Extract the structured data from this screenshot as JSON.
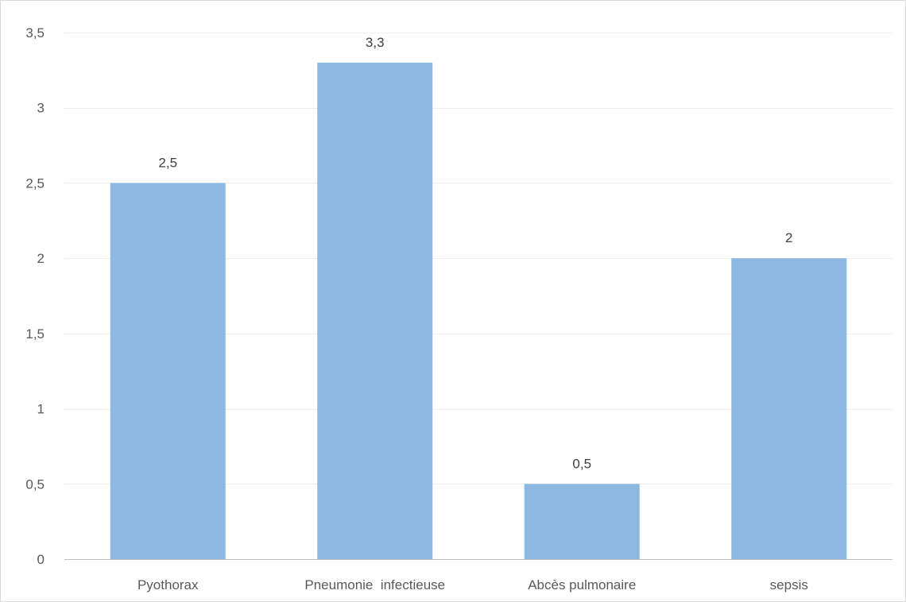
{
  "chart_data": {
    "type": "bar",
    "categories": [
      "Pyothorax",
      "Pneumonie  infectieuse",
      "Abcès pulmonaire",
      "sepsis"
    ],
    "values": [
      2.5,
      3.3,
      0.5,
      2
    ],
    "data_labels": [
      "2,5",
      "3,3",
      "0,5",
      "2"
    ],
    "y_ticks": [
      "0",
      "0,5",
      "1",
      "1,5",
      "2",
      "2,5",
      "3",
      "3,5"
    ],
    "ylim": [
      0,
      3.5
    ],
    "y_tick_step": 0.5,
    "grid": true,
    "legend": "none",
    "bar_color": "#8db8e1",
    "grid_color": "#efefef",
    "axis_color": "#bfbfbf"
  }
}
